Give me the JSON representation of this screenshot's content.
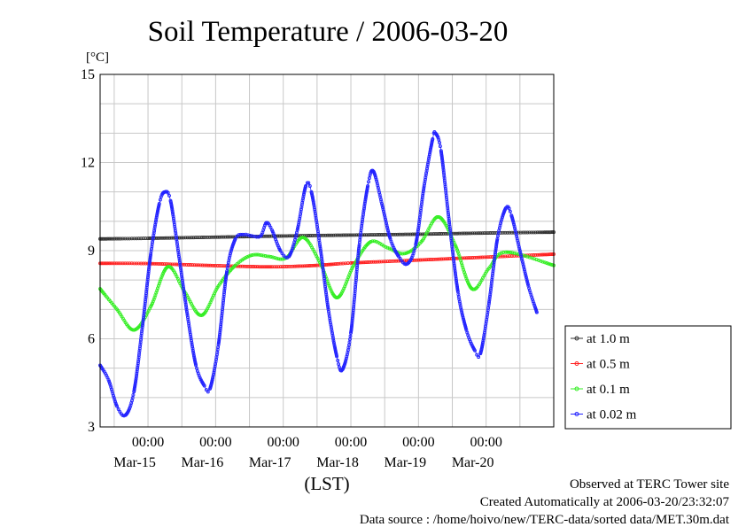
{
  "chart_data": {
    "type": "line",
    "title": "Soil Temperature / 2006-03-20",
    "ylabel": "[°C]",
    "xlabel": "(LST)",
    "ylim": [
      3,
      15
    ],
    "yticks": [
      3,
      6,
      9,
      12,
      15
    ],
    "xlim": [
      "2006-03-14T07:00",
      "2006-03-21T00:00"
    ],
    "xticks": [
      {
        "time": "2006-03-15T00:00",
        "label": "00:00",
        "date": "Mar-15"
      },
      {
        "time": "2006-03-16T00:00",
        "label": "00:00",
        "date": "Mar-16"
      },
      {
        "time": "2006-03-17T00:00",
        "label": "00:00",
        "date": "Mar-17"
      },
      {
        "time": "2006-03-18T00:00",
        "label": "00:00",
        "date": "Mar-18"
      },
      {
        "time": "2006-03-19T00:00",
        "label": "00:00",
        "date": "Mar-19"
      },
      {
        "time": "2006-03-20T00:00",
        "label": "00:00",
        "date": "Mar-20"
      }
    ],
    "grid": true,
    "legend_position": "right",
    "series": [
      {
        "name": "at 1.0 m",
        "color": "#333333",
        "points": [
          [
            "2006-03-14T07:00",
            9.4
          ],
          [
            "2006-03-15T00:00",
            9.42
          ],
          [
            "2006-03-16T00:00",
            9.46
          ],
          [
            "2006-03-17T00:00",
            9.5
          ],
          [
            "2006-03-18T00:00",
            9.53
          ],
          [
            "2006-03-19T00:00",
            9.56
          ],
          [
            "2006-03-20T00:00",
            9.6
          ],
          [
            "2006-03-21T00:00",
            9.63
          ]
        ]
      },
      {
        "name": "at 0.5 m",
        "color": "#ff2020",
        "points": [
          [
            "2006-03-14T07:00",
            8.57
          ],
          [
            "2006-03-15T00:00",
            8.56
          ],
          [
            "2006-03-16T00:00",
            8.49
          ],
          [
            "2006-03-16T20:00",
            8.45
          ],
          [
            "2006-03-17T12:00",
            8.5
          ],
          [
            "2006-03-18T00:00",
            8.58
          ],
          [
            "2006-03-19T00:00",
            8.68
          ],
          [
            "2006-03-20T00:00",
            8.78
          ],
          [
            "2006-03-21T00:00",
            8.88
          ]
        ]
      },
      {
        "name": "at 0.1 m",
        "color": "#33ee22",
        "points": [
          [
            "2006-03-14T07:00",
            7.7
          ],
          [
            "2006-03-14T13:00",
            7.0
          ],
          [
            "2006-03-14T19:00",
            6.3
          ],
          [
            "2006-03-15T01:00",
            7.1
          ],
          [
            "2006-03-15T07:00",
            8.45
          ],
          [
            "2006-03-15T13:00",
            7.6
          ],
          [
            "2006-03-15T19:00",
            6.8
          ],
          [
            "2006-03-16T01:00",
            7.8
          ],
          [
            "2006-03-16T07:00",
            8.5
          ],
          [
            "2006-03-16T13:00",
            8.85
          ],
          [
            "2006-03-16T19:00",
            8.8
          ],
          [
            "2006-03-17T01:00",
            8.75
          ],
          [
            "2006-03-17T07:00",
            9.45
          ],
          [
            "2006-03-17T13:00",
            8.6
          ],
          [
            "2006-03-17T19:00",
            7.4
          ],
          [
            "2006-03-18T01:00",
            8.5
          ],
          [
            "2006-03-18T07:00",
            9.3
          ],
          [
            "2006-03-18T13:00",
            9.1
          ],
          [
            "2006-03-18T19:00",
            8.9
          ],
          [
            "2006-03-19T01:00",
            9.3
          ],
          [
            "2006-03-19T07:00",
            10.15
          ],
          [
            "2006-03-19T13:00",
            9.2
          ],
          [
            "2006-03-19T19:00",
            7.7
          ],
          [
            "2006-03-20T01:00",
            8.4
          ],
          [
            "2006-03-20T07:00",
            8.95
          ],
          [
            "2006-03-21T00:00",
            8.5
          ]
        ]
      },
      {
        "name": "at 0.02 m",
        "color": "#2222ff",
        "points": [
          [
            "2006-03-14T07:00",
            5.1
          ],
          [
            "2006-03-14T10:00",
            4.6
          ],
          [
            "2006-03-14T13:00",
            3.7
          ],
          [
            "2006-03-14T16:00",
            3.4
          ],
          [
            "2006-03-14T19:00",
            4.2
          ],
          [
            "2006-03-14T22:00",
            6.4
          ],
          [
            "2006-03-15T01:00",
            8.9
          ],
          [
            "2006-03-15T04:00",
            10.6
          ],
          [
            "2006-03-15T06:00",
            11.0
          ],
          [
            "2006-03-15T08:00",
            10.7
          ],
          [
            "2006-03-15T11:00",
            8.8
          ],
          [
            "2006-03-15T14:00",
            6.8
          ],
          [
            "2006-03-15T17:00",
            5.1
          ],
          [
            "2006-03-15T20:00",
            4.4
          ],
          [
            "2006-03-15T22:00",
            4.3
          ],
          [
            "2006-03-16T01:00",
            5.8
          ],
          [
            "2006-03-16T04:00",
            8.3
          ],
          [
            "2006-03-16T07:00",
            9.4
          ],
          [
            "2006-03-16T10:00",
            9.55
          ],
          [
            "2006-03-16T13:00",
            9.5
          ],
          [
            "2006-03-16T16:00",
            9.5
          ],
          [
            "2006-03-16T18:00",
            9.95
          ],
          [
            "2006-03-16T20:00",
            9.7
          ],
          [
            "2006-03-16T23:00",
            9.0
          ],
          [
            "2006-03-17T02:00",
            8.8
          ],
          [
            "2006-03-17T05:00",
            9.7
          ],
          [
            "2006-03-17T08:00",
            11.2
          ],
          [
            "2006-03-17T10:00",
            11.0
          ],
          [
            "2006-03-17T13:00",
            9.2
          ],
          [
            "2006-03-17T16:00",
            7.0
          ],
          [
            "2006-03-17T19:00",
            5.4
          ],
          [
            "2006-03-17T21:00",
            4.95
          ],
          [
            "2006-03-18T00:00",
            6.2
          ],
          [
            "2006-03-18T03:00",
            9.2
          ],
          [
            "2006-03-18T06:00",
            11.2
          ],
          [
            "2006-03-18T08:00",
            11.7
          ],
          [
            "2006-03-18T11:00",
            10.6
          ],
          [
            "2006-03-18T14:00",
            9.4
          ],
          [
            "2006-03-18T17:00",
            8.8
          ],
          [
            "2006-03-18T20:00",
            8.55
          ],
          [
            "2006-03-18T23:00",
            9.2
          ],
          [
            "2006-03-19T02:00",
            11.2
          ],
          [
            "2006-03-19T05:00",
            12.8
          ],
          [
            "2006-03-19T06:00",
            13.0
          ],
          [
            "2006-03-19T08:00",
            12.4
          ],
          [
            "2006-03-19T11:00",
            9.9
          ],
          [
            "2006-03-19T14:00",
            7.6
          ],
          [
            "2006-03-19T17:00",
            6.3
          ],
          [
            "2006-03-19T20:00",
            5.6
          ],
          [
            "2006-03-19T22:00",
            5.5
          ],
          [
            "2006-03-20T01:00",
            7.2
          ],
          [
            "2006-03-20T04:00",
            9.4
          ],
          [
            "2006-03-20T07:00",
            10.45
          ],
          [
            "2006-03-20T09:00",
            10.2
          ],
          [
            "2006-03-20T12:00",
            9.0
          ],
          [
            "2006-03-20T15:00",
            7.8
          ],
          [
            "2006-03-20T18:00",
            6.9
          ]
        ]
      }
    ]
  },
  "footer": {
    "line1": "Observed at TERC Tower site",
    "line2": "Created Automatically at 2006-03-20/23:32:07",
    "line3": "Data source : /home/hoivo/new/TERC-data/sorted  data/MET.30m.dat"
  }
}
